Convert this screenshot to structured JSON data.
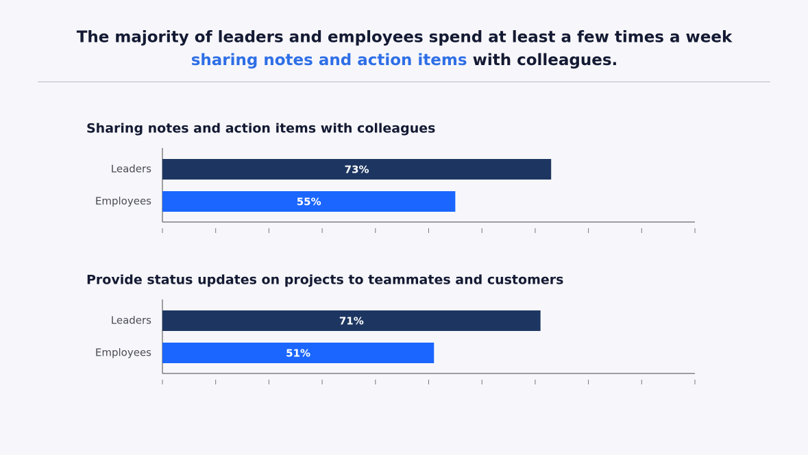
{
  "header": {
    "title_line1": "The majority of leaders and employees spend at least a few times a week",
    "title_highlight": "sharing notes and action items",
    "title_end": "with colleagues."
  },
  "chart_data": [
    {
      "type": "bar",
      "orientation": "horizontal",
      "title": "Sharing notes and action items with colleagues",
      "categories": [
        "Leaders",
        "Employees"
      ],
      "values": [
        73,
        55
      ],
      "value_labels": [
        "73%",
        "55%"
      ],
      "colors": [
        "#1d3661",
        "#1a66ff"
      ],
      "xlim": [
        0,
        100
      ],
      "xticks": [
        0,
        10,
        20,
        30,
        40,
        50,
        60,
        70,
        80,
        90,
        100
      ]
    },
    {
      "type": "bar",
      "orientation": "horizontal",
      "title": "Provide status updates on projects to teammates and customers",
      "categories": [
        "Leaders",
        "Employees"
      ],
      "values": [
        71,
        51
      ],
      "value_labels": [
        "71%",
        "51%"
      ],
      "colors": [
        "#1d3661",
        "#1a66ff"
      ],
      "xlim": [
        0,
        100
      ],
      "xticks": [
        0,
        10,
        20,
        30,
        40,
        50,
        60,
        70,
        80,
        90,
        100
      ]
    }
  ]
}
